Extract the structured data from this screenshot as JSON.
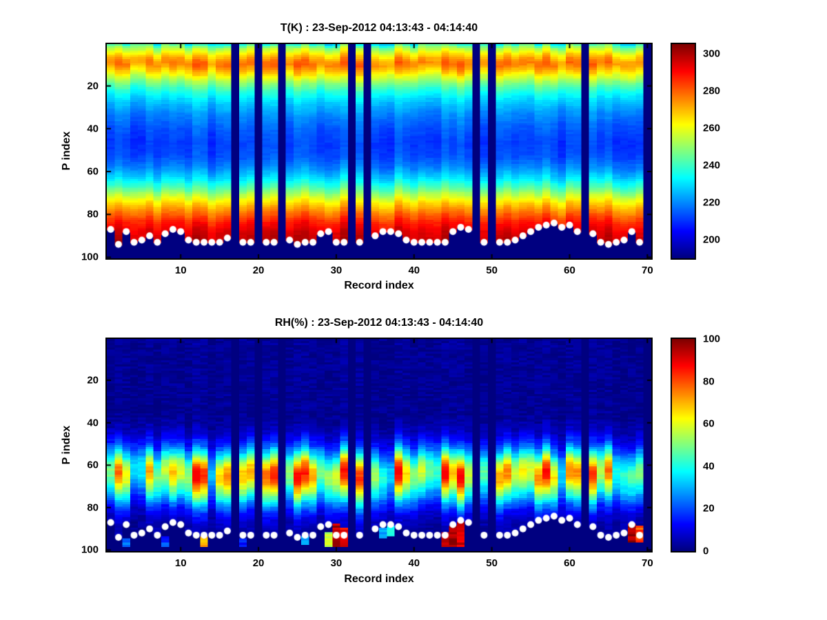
{
  "figure": {
    "background": "#ffffff"
  },
  "chart_data": [
    {
      "type": "heatmap",
      "colormap": "jet",
      "title": "T(K) : 23-Sep-2012 04:13:43 - 04:14:40",
      "xlabel": "Record index",
      "ylabel": "P index",
      "x_range": [
        1,
        70
      ],
      "y_range": [
        1,
        100
      ],
      "x_ticks": [
        10,
        20,
        30,
        40,
        50,
        60,
        70
      ],
      "y_ticks": [
        20,
        40,
        60,
        80,
        100
      ],
      "clim": [
        190,
        305
      ],
      "colorbar_ticks": [
        200,
        220,
        240,
        260,
        280,
        300
      ],
      "legend_position": "right-colorbar",
      "grid": false,
      "marker_color": "#ffffff",
      "profile": [
        [
          0,
          230
        ],
        [
          2,
          249
        ],
        [
          5,
          263
        ],
        [
          8,
          274
        ],
        [
          10,
          277
        ],
        [
          12,
          271
        ],
        [
          15,
          261
        ],
        [
          18,
          250
        ],
        [
          22,
          238
        ],
        [
          27,
          228
        ],
        [
          33,
          220
        ],
        [
          40,
          214
        ],
        [
          47,
          211
        ],
        [
          53,
          213
        ],
        [
          58,
          219
        ],
        [
          63,
          229
        ],
        [
          68,
          243
        ],
        [
          72,
          257
        ],
        [
          76,
          269
        ],
        [
          80,
          279
        ],
        [
          84,
          288
        ],
        [
          88,
          294
        ],
        [
          93,
          298
        ],
        [
          100,
          301
        ]
      ],
      "col_amp_bands": [
        [
          16,
          6
        ],
        [
          58,
          3.5
        ],
        [
          101,
          4.5
        ]
      ],
      "col_shift": 2.5,
      "cell_noise": 2.5,
      "missing_records": [
        17,
        20,
        23,
        32,
        34,
        48,
        50,
        62,
        70
      ],
      "surface_p": [
        87,
        94,
        88,
        93,
        92,
        90,
        93,
        89,
        87,
        88,
        92,
        93,
        93,
        93,
        93,
        91,
        null,
        93,
        93,
        null,
        93,
        93,
        null,
        92,
        94,
        93,
        93,
        89,
        88,
        93,
        93,
        null,
        93,
        null,
        90,
        88,
        88,
        89,
        92,
        93,
        93,
        93,
        93,
        93,
        88,
        86,
        87,
        null,
        93,
        null,
        93,
        93,
        92,
        90,
        88,
        86,
        85,
        84,
        86,
        85,
        88,
        null,
        89,
        93,
        94,
        93,
        92,
        88,
        93,
        null
      ],
      "hot_spots": []
    },
    {
      "type": "heatmap",
      "colormap": "jet",
      "title": "RH(%) : 23-Sep-2012 04:13:43 - 04:14:40",
      "xlabel": "Record index",
      "ylabel": "P index",
      "x_range": [
        1,
        70
      ],
      "y_range": [
        1,
        100
      ],
      "x_ticks": [
        10,
        20,
        30,
        40,
        50,
        60,
        70
      ],
      "y_ticks": [
        20,
        40,
        60,
        80,
        100
      ],
      "clim": [
        0,
        100
      ],
      "colorbar_ticks": [
        0,
        20,
        40,
        60,
        80,
        100
      ],
      "legend_position": "right-colorbar",
      "grid": false,
      "marker_color": "#ffffff",
      "profile": [
        [
          0,
          2
        ],
        [
          38,
          2
        ],
        [
          44,
          6
        ],
        [
          50,
          16
        ],
        [
          55,
          34
        ],
        [
          58,
          47
        ],
        [
          61,
          58
        ],
        [
          64,
          62
        ],
        [
          67,
          59
        ],
        [
          70,
          50
        ],
        [
          74,
          38
        ],
        [
          78,
          24
        ],
        [
          82,
          13
        ],
        [
          86,
          7
        ],
        [
          90,
          4
        ],
        [
          100,
          2
        ]
      ],
      "col_amp_rel": 0.5,
      "value_cap": 88,
      "col_shift": 5,
      "cell_noise": 5,
      "missing_records": [
        17,
        20,
        23,
        32,
        34,
        48,
        50,
        62,
        70
      ],
      "surface_p": [
        87,
        94,
        88,
        93,
        92,
        90,
        93,
        89,
        87,
        88,
        92,
        93,
        93,
        93,
        93,
        91,
        null,
        93,
        93,
        null,
        93,
        93,
        null,
        92,
        94,
        93,
        93,
        89,
        88,
        93,
        93,
        null,
        93,
        null,
        90,
        88,
        88,
        89,
        92,
        93,
        93,
        93,
        93,
        93,
        88,
        86,
        87,
        null,
        93,
        null,
        93,
        93,
        92,
        90,
        88,
        86,
        85,
        84,
        86,
        85,
        88,
        null,
        89,
        93,
        94,
        93,
        92,
        88,
        93,
        null
      ],
      "hot_spots": [
        {
          "record": 3,
          "p_top": 95,
          "p_bottom": 98,
          "value": 22
        },
        {
          "record": 8,
          "p_top": 94,
          "p_bottom": 98,
          "value": 18
        },
        {
          "record": 13,
          "p_top": 94,
          "p_bottom": 98,
          "value": 72
        },
        {
          "record": 18,
          "p_top": 95,
          "p_bottom": 98,
          "value": 15
        },
        {
          "record": 26,
          "p_top": 94,
          "p_bottom": 97,
          "value": 30
        },
        {
          "record": 29,
          "p_top": 92,
          "p_bottom": 98,
          "value": 55
        },
        {
          "record": 30,
          "p_top": 88,
          "p_bottom": 98,
          "value": 95
        },
        {
          "record": 31,
          "p_top": 90,
          "p_bottom": 98,
          "value": 88
        },
        {
          "record": 36,
          "p_top": 90,
          "p_bottom": 94,
          "value": 30
        },
        {
          "record": 37,
          "p_top": 89,
          "p_bottom": 93,
          "value": 38
        },
        {
          "record": 44,
          "p_top": 92,
          "p_bottom": 98,
          "value": 90
        },
        {
          "record": 45,
          "p_top": 89,
          "p_bottom": 98,
          "value": 96
        },
        {
          "record": 46,
          "p_top": 87,
          "p_bottom": 98,
          "value": 92
        },
        {
          "record": 68,
          "p_top": 88,
          "p_bottom": 96,
          "value": 95
        },
        {
          "record": 69,
          "p_top": 89,
          "p_bottom": 96,
          "value": 80
        }
      ]
    }
  ]
}
